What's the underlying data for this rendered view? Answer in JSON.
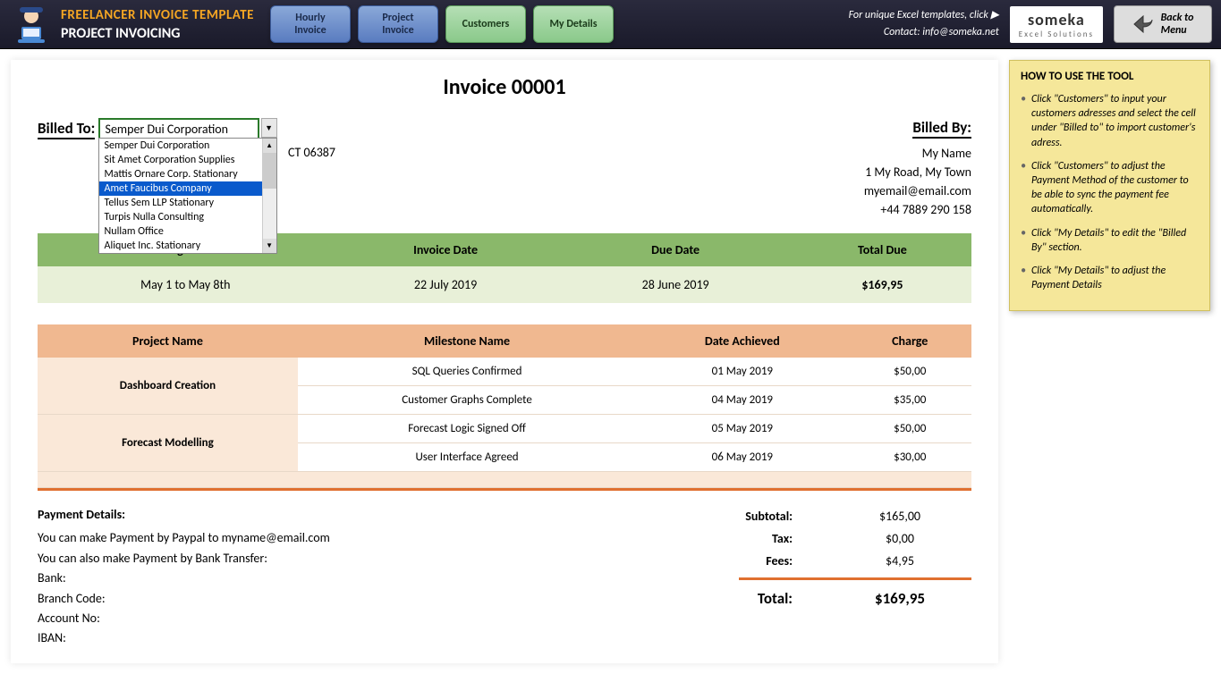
{
  "header": {
    "title1": "FREELANCER INVOICE TEMPLATE",
    "title2": "PROJECT INVOICING",
    "nav": {
      "hourly1": "Hourly",
      "hourly2": "Invoice",
      "project1": "Project",
      "project2": "Invoice",
      "customers": "Customers",
      "mydetails": "My Details"
    },
    "promo1": "For unique Excel templates, click ▶",
    "promo2": "Contact: info@someka.net",
    "someka_main": "someka",
    "someka_sub": "Excel Solutions",
    "back1": "Back to",
    "back2": "Menu"
  },
  "invoice": {
    "title": "Invoice 00001",
    "billed_to_label": "Billed To:",
    "billed_by_label": "Billed By:",
    "dropdown_selected": "Semper Dui Corporation",
    "dropdown_items": [
      "Semper Dui Corporation",
      "Sit Amet Corporation Supplies",
      "Mattis Ornare Corp. Stationary",
      "Amet Faucibus Company",
      "Tellus Sem LLP Stationary",
      "Turpis Nulla Consulting",
      "Nullam Office",
      "Aliquet Inc. Stationary"
    ],
    "dropdown_highlight_index": 3,
    "addr_partial": "CT 06387",
    "billed_by": {
      "name": "My Name",
      "addr": "1 My Road, My Town",
      "email": "myemail@email.com",
      "phone": "+44 7889 290 158"
    },
    "date_headers": [
      "Billing Period",
      "Invoice Date",
      "Due Date",
      "Total Due"
    ],
    "date_values": [
      "May 1 to May 8th",
      "22 July 2019",
      "28 June 2019",
      "$169,95"
    ],
    "proj_headers": [
      "Project Name",
      "Milestone Name",
      "Date Achieved",
      "Charge"
    ],
    "projects": [
      {
        "name": "Dashboard Creation",
        "rows": [
          {
            "milestone": "SQL Queries Confirmed",
            "date": "01 May 2019",
            "charge": "$50,00"
          },
          {
            "milestone": "Customer Graphs Complete",
            "date": "04 May 2019",
            "charge": "$35,00"
          }
        ]
      },
      {
        "name": "Forecast Modelling",
        "rows": [
          {
            "milestone": "Forecast Logic Signed Off",
            "date": "05 May 2019",
            "charge": "$50,00"
          },
          {
            "milestone": "User Interface Agreed",
            "date": "06 May 2019",
            "charge": "$30,00"
          }
        ]
      }
    ],
    "totals": {
      "subtotal_label": "Subtotal:",
      "subtotal_val": "$165,00",
      "tax_label": "Tax:",
      "tax_val": "$0,00",
      "fees_label": "Fees:",
      "fees_val": "$4,95",
      "total_label": "Total:",
      "total_val": "$169,95"
    },
    "payment": {
      "title": "Payment Details:",
      "line1": "You can make Payment by Paypal to myname@email.com",
      "line2": "You can also make Payment by Bank Transfer:",
      "bank": "Bank:",
      "branch": "Branch Code:",
      "acct": "Account No:",
      "iban": "IBAN:"
    }
  },
  "help": {
    "title": "HOW TO USE THE TOOL",
    "items": [
      "Click \"Customers\" to input your customers adresses and select the cell under \"Billed to\" to import customer's adress.",
      "Click \"Customers\" to adjust the Payment Method of the customer to be able to sync the payment fee automatically.",
      "Click \"My Details\" to edit the \"Billed By\" section.",
      "Click \"My Details\" to adjust the Payment Details"
    ]
  }
}
